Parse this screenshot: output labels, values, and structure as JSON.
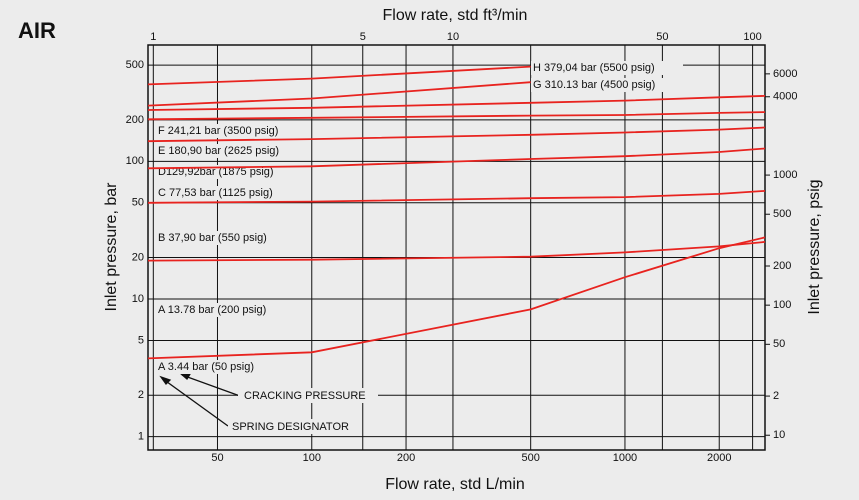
{
  "chart_data": {
    "type": "line",
    "title": "AIR",
    "x_label": "Flow rate, std L/min",
    "x2_label": "Flow rate, std ft³/min",
    "y_label": "Inlet pressure, bar",
    "y2_label": "Inlet pressure, psig",
    "xlog": true,
    "ylog": true,
    "grid": true,
    "x": [
      30,
      100,
      500,
      1000,
      2000,
      2800
    ],
    "xlim": [
      30,
      2800
    ],
    "xticks": [
      50,
      100,
      200,
      500,
      1000,
      2000
    ],
    "x2lim": [
      0.96,
      110
    ],
    "x2ticks": [
      1,
      5,
      10,
      50,
      100
    ],
    "ylim": [
      0.8,
      700
    ],
    "yticks": [
      1,
      2,
      5,
      10,
      20,
      50,
      100,
      200,
      500
    ],
    "y2lim": [
      7.7,
      10000
    ],
    "y2ticks": [
      10,
      {
        "value": 20,
        "label": "2"
      },
      50,
      100,
      200,
      500,
      1000,
      4000,
      6000
    ],
    "series": [
      {
        "name": "H 379,04 bar (5500 psig)",
        "color": "#e8231f",
        "values": [
          362,
          399,
          488,
          null,
          null,
          null
        ]
      },
      {
        "name": "G 310.13 bar (4500 psig)",
        "color": "#e8231f",
        "values": [
          254,
          286,
          376,
          null,
          null,
          null
        ]
      },
      {
        "name": "F 241,21 bar (3500 psig)",
        "color": "#e8231f",
        "values": [
          236,
          245,
          266,
          276,
          292,
          299
        ]
      },
      {
        "name": "E 180,90 bar (2625 psig)",
        "color": "#e8231f",
        "values": [
          202,
          207,
          215,
          217,
          225,
          228
        ]
      },
      {
        "name": "D129,92bar (1875 psig)",
        "color": "#e8231f",
        "values": [
          140,
          145,
          156,
          162,
          170,
          176
        ]
      },
      {
        "name": "C 77,53 bar (1125 psig)",
        "color": "#e8231f",
        "values": [
          89,
          92,
          104,
          109,
          117,
          124
        ]
      },
      {
        "name": "B 37,90 bar (550 psig)",
        "color": "#e8231f",
        "values": [
          50,
          51,
          54,
          55,
          58,
          61
        ]
      },
      {
        "name": "A 13.78 bar (200 psig)",
        "color": "#e8231f",
        "values": [
          19,
          19.3,
          20.3,
          21.8,
          24.1,
          26
        ]
      },
      {
        "name": "A 3.44 bar (50 psig)",
        "color": "#e8231f",
        "values": [
          3.7,
          4.1,
          8.4,
          14.4,
          23.4,
          28
        ]
      }
    ],
    "annotations": [
      "CRACKING PRESSURE",
      "SPRING DESIGNATOR"
    ]
  }
}
